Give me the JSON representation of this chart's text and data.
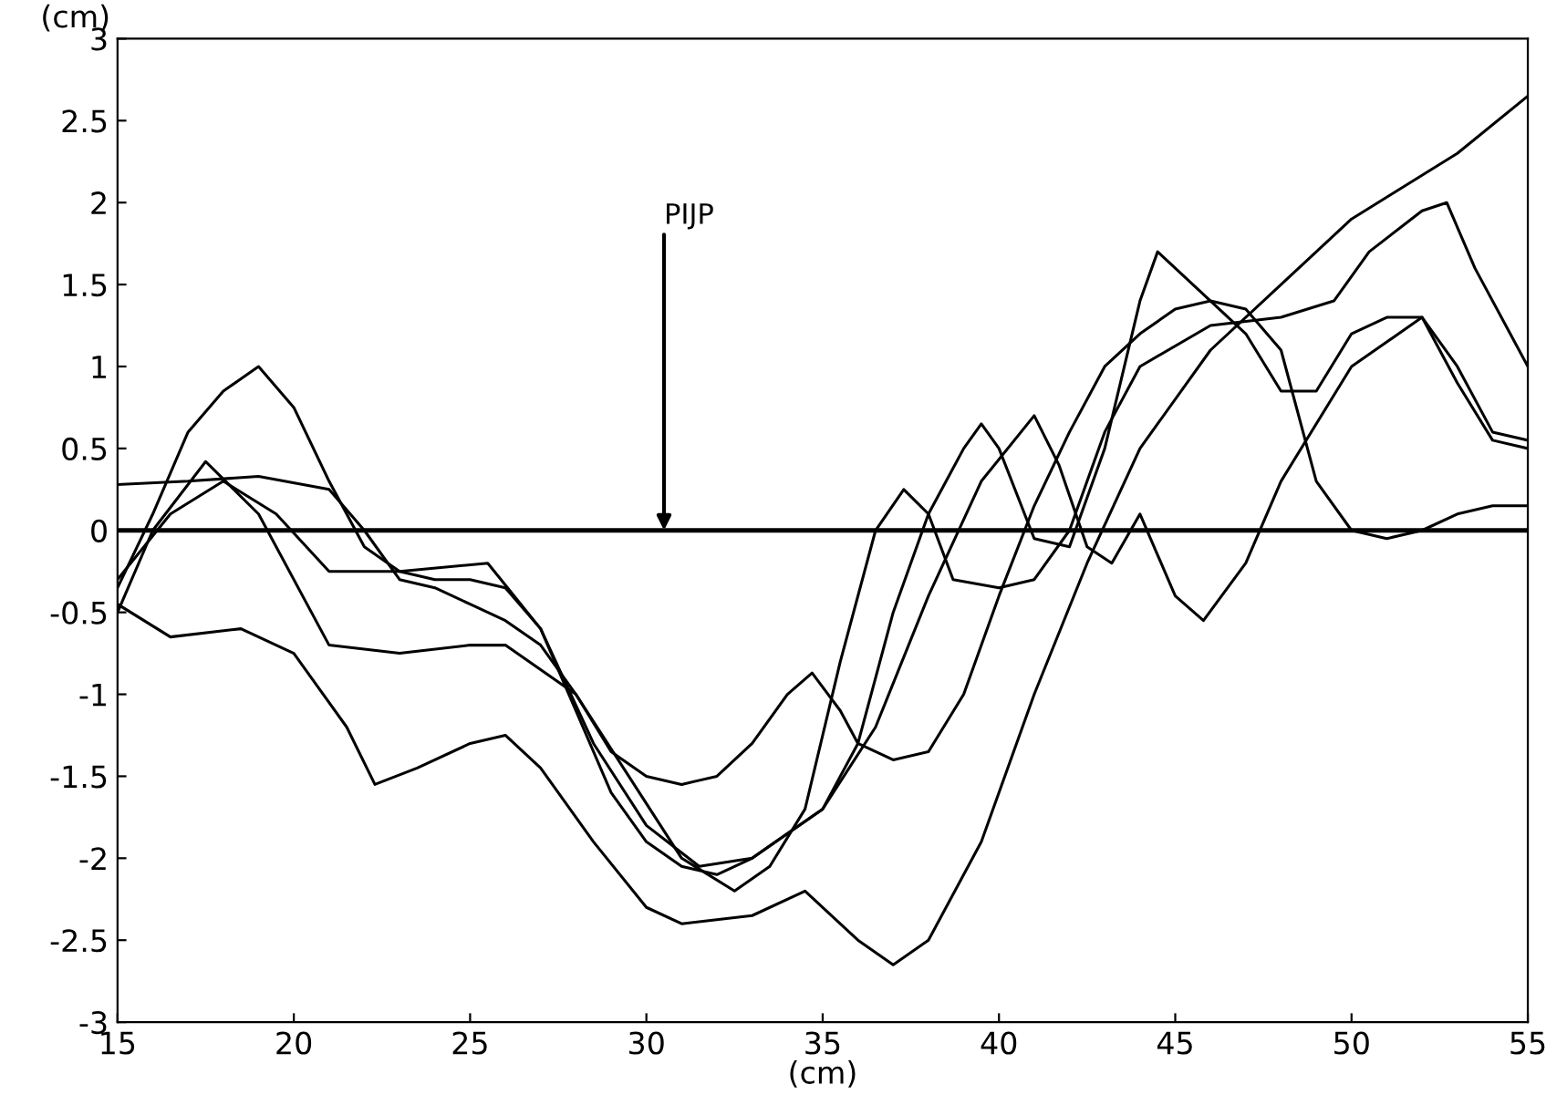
{
  "chart_data": {
    "type": "line",
    "xlabel": "(cm)",
    "ylabel": "(cm)",
    "xlim": [
      15,
      55
    ],
    "ylim": [
      -3,
      3
    ],
    "xticks": [
      15,
      20,
      25,
      30,
      35,
      40,
      45,
      50,
      55
    ],
    "yticks": [
      -3,
      -2.5,
      -2,
      -1.5,
      -1,
      -0.5,
      0,
      0.5,
      1,
      1.5,
      2,
      2.5,
      3
    ],
    "grid": false,
    "legend": false,
    "marker": "none",
    "line_style": "solid",
    "ref_lines": [
      {
        "axis": "y",
        "value": 0,
        "color": "#000000"
      }
    ],
    "annotations": [
      {
        "text": "PIJP",
        "x": 30.5,
        "y": 0
      }
    ],
    "series": [
      {
        "color": "#000000",
        "x": [
          15,
          16,
          17,
          18,
          19,
          20,
          21,
          22,
          23,
          24,
          25,
          26,
          27,
          28,
          29,
          30,
          31,
          32,
          33,
          34,
          35,
          36,
          37,
          38,
          39,
          39.5,
          40,
          41,
          42,
          43,
          44,
          44.5,
          45,
          46,
          47,
          48,
          49,
          50,
          51,
          52,
          53,
          54,
          55
        ],
        "values": [
          -0.35,
          0.1,
          0.6,
          0.85,
          1.0,
          0.75,
          0.3,
          -0.1,
          -0.25,
          -0.3,
          -0.3,
          -0.35,
          -0.6,
          -1.1,
          -1.6,
          -1.9,
          -2.05,
          -2.1,
          -2.0,
          -1.85,
          -1.7,
          -1.3,
          -0.5,
          0.1,
          0.5,
          0.65,
          0.5,
          -0.05,
          -0.1,
          0.5,
          1.4,
          1.7,
          1.6,
          1.4,
          1.35,
          1.1,
          0.3,
          0.0,
          -0.05,
          0.0,
          0.1,
          0.15,
          0.15
        ]
      },
      {
        "color": "#000000",
        "x": [
          15,
          17,
          19,
          21,
          22,
          23,
          24,
          25,
          26,
          27,
          28,
          29,
          30,
          31,
          32,
          33,
          34,
          34.7,
          35.5,
          36,
          37,
          38,
          39,
          40,
          41,
          42,
          43,
          44,
          45,
          46,
          47,
          48,
          49,
          50,
          51,
          52,
          53,
          54,
          55
        ],
        "values": [
          0.28,
          0.3,
          0.33,
          0.25,
          0.0,
          -0.3,
          -0.35,
          -0.45,
          -0.55,
          -0.7,
          -1.0,
          -1.35,
          -1.5,
          -1.55,
          -1.5,
          -1.3,
          -1.0,
          -0.87,
          -1.1,
          -1.3,
          -1.4,
          -1.35,
          -1.0,
          -0.4,
          0.15,
          0.6,
          1.0,
          1.2,
          1.35,
          1.4,
          1.2,
          0.85,
          0.85,
          1.2,
          1.3,
          1.3,
          0.9,
          0.55,
          0.5
        ]
      },
      {
        "color": "#000000",
        "x": [
          15,
          16.5,
          18.5,
          20,
          21.5,
          22.3,
          23.5,
          25,
          26,
          27,
          28.5,
          30,
          31,
          33,
          34.5,
          36,
          37,
          38,
          39.5,
          41,
          42.5,
          44,
          46,
          48,
          50,
          53,
          55
        ],
        "values": [
          -0.45,
          -0.65,
          -0.6,
          -0.75,
          -1.2,
          -1.55,
          -1.45,
          -1.3,
          -1.25,
          -1.45,
          -1.9,
          -2.3,
          -2.4,
          -2.35,
          -2.2,
          -2.5,
          -2.65,
          -2.5,
          -1.9,
          -1.0,
          -0.2,
          0.5,
          1.1,
          1.5,
          1.9,
          2.3,
          2.65
        ]
      },
      {
        "color": "#000000",
        "x": [
          15,
          16,
          17.5,
          19,
          21,
          23,
          25,
          26,
          28,
          29.5,
          31,
          32.5,
          33.5,
          34.5,
          35.5,
          36.5,
          37.3,
          38,
          38.7,
          40,
          41,
          42,
          43,
          44,
          46,
          48,
          49.5,
          50.5,
          52,
          52.7,
          53.5,
          54.5,
          55
        ],
        "values": [
          -0.5,
          0.0,
          0.42,
          0.1,
          -0.7,
          -0.75,
          -0.7,
          -0.7,
          -1.0,
          -1.5,
          -2.0,
          -2.2,
          -2.05,
          -1.7,
          -0.8,
          0.0,
          0.25,
          0.1,
          -0.3,
          -0.35,
          -0.3,
          0.0,
          0.6,
          1.0,
          1.25,
          1.3,
          1.4,
          1.7,
          1.95,
          2.0,
          1.6,
          1.2,
          1.0
        ]
      },
      {
        "color": "#000000",
        "x": [
          15,
          16.5,
          18,
          19.5,
          21,
          23,
          25.5,
          27,
          28.5,
          30,
          31.5,
          33,
          35,
          36.5,
          38,
          39.5,
          41,
          41.7,
          42.5,
          43.2,
          44,
          45,
          45.8,
          47,
          48,
          50,
          52,
          53,
          54,
          55
        ],
        "values": [
          -0.3,
          0.1,
          0.3,
          0.1,
          -0.25,
          -0.25,
          -0.2,
          -0.6,
          -1.3,
          -1.8,
          -2.05,
          -2.0,
          -1.7,
          -1.2,
          -0.4,
          0.3,
          0.7,
          0.4,
          -0.1,
          -0.2,
          0.1,
          -0.4,
          -0.55,
          -0.2,
          0.3,
          1.0,
          1.3,
          1.0,
          0.6,
          0.55
        ]
      }
    ]
  }
}
